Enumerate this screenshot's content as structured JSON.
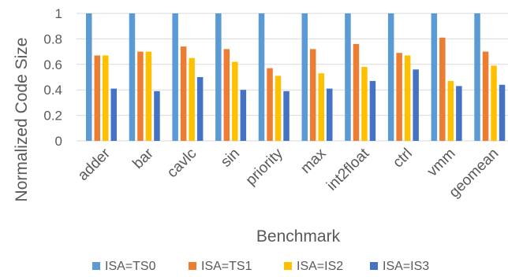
{
  "chart_data": {
    "type": "bar",
    "title": "",
    "xlabel": "Benchmark",
    "ylabel": "Normalized Code Size",
    "ylim": [
      0,
      1
    ],
    "yticks": [
      "0",
      "0.2",
      "0.4",
      "0.6",
      "0.8",
      "1"
    ],
    "grid": true,
    "legend_position": "bottom",
    "categories": [
      "adder",
      "bar",
      "cavlc",
      "sin",
      "priority",
      "max",
      "int2float",
      "ctrl",
      "vmm",
      "geomean"
    ],
    "series": [
      {
        "name": "ISA=TS0",
        "color": "#5B9BD5",
        "values": [
          1,
          1,
          1,
          1,
          1,
          1,
          1,
          1,
          1,
          1
        ]
      },
      {
        "name": "ISA=TS1",
        "color": "#ED7D31",
        "values": [
          0.67,
          0.7,
          0.74,
          0.72,
          0.57,
          0.72,
          0.76,
          0.69,
          0.81,
          0.7
        ]
      },
      {
        "name": "ISA=IS2",
        "color": "#FFC000",
        "values": [
          0.67,
          0.7,
          0.65,
          0.62,
          0.51,
          0.53,
          0.58,
          0.67,
          0.47,
          0.59
        ]
      },
      {
        "name": "ISA=IS3",
        "color": "#4472C4",
        "values": [
          0.41,
          0.39,
          0.5,
          0.4,
          0.39,
          0.41,
          0.47,
          0.56,
          0.43,
          0.44
        ]
      }
    ]
  }
}
